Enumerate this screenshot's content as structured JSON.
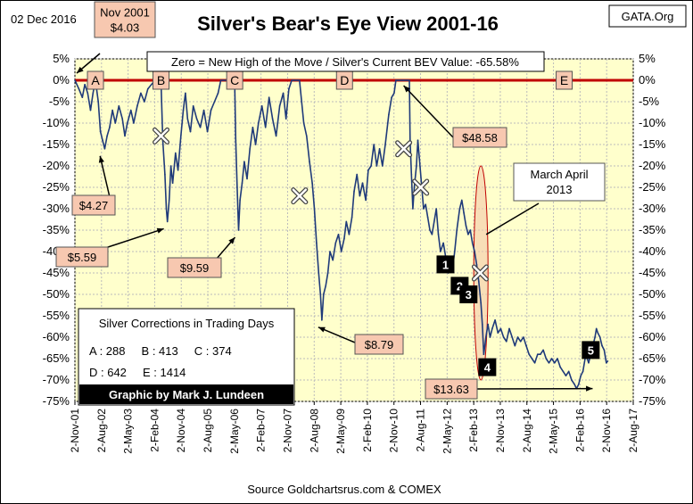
{
  "chart_data": {
    "type": "line",
    "title": "Silver's Bear's Eye View 2001-16",
    "date_label": "02 Dec 2016",
    "watermark": "GATA.Org",
    "subtitle": "Zero = New High of the Move / Silver's Current BEV Value: -65.58%",
    "source": "Source Goldchartsrus.com & COMEX",
    "xlabel": "",
    "ylabel": "",
    "ylim": [
      -75,
      5
    ],
    "y_ticks": [
      5,
      0,
      -5,
      -10,
      -15,
      -20,
      -25,
      -30,
      -35,
      -40,
      -45,
      -50,
      -55,
      -60,
      -65,
      -70,
      -75
    ],
    "y_tick_labels": [
      "5%",
      "0%",
      "-5%",
      "-10%",
      "-15%",
      "-20%",
      "-25%",
      "-30%",
      "-35%",
      "-40%",
      "-45%",
      "-50%",
      "-55%",
      "-60%",
      "-65%",
      "-70%",
      "-75%"
    ],
    "x_tick_labels": [
      "2-Nov-01",
      "2-Aug-02",
      "2-May-03",
      "2-Feb-04",
      "2-Nov-04",
      "2-Aug-05",
      "2-May-06",
      "2-Feb-07",
      "2-Nov-07",
      "2-Aug-08",
      "2-May-09",
      "2-Feb-10",
      "2-Nov-10",
      "2-Aug-11",
      "2-May-12",
      "2-Feb-13",
      "2-Nov-13",
      "2-Aug-14",
      "2-May-15",
      "2-Feb-16",
      "2-Nov-16",
      "2-Aug-17"
    ],
    "grid": true,
    "plot_background": "#ffffcc",
    "line_color": "#1f3a7a",
    "zero_line_color": "#c00000",
    "series": [
      {
        "values": [
          [
            2001.84,
            0
          ],
          [
            2001.95,
            -2
          ],
          [
            2002.05,
            -4
          ],
          [
            2002.12,
            -1
          ],
          [
            2002.2,
            -3
          ],
          [
            2002.28,
            -7
          ],
          [
            2002.35,
            -3
          ],
          [
            2002.42,
            0
          ],
          [
            2002.5,
            -5
          ],
          [
            2002.56,
            -12
          ],
          [
            2002.62,
            -14
          ],
          [
            2002.68,
            -16
          ],
          [
            2002.75,
            -13
          ],
          [
            2002.82,
            -11
          ],
          [
            2002.9,
            -7
          ],
          [
            2002.98,
            -10
          ],
          [
            2003.08,
            -6
          ],
          [
            2003.18,
            -9
          ],
          [
            2003.25,
            -13
          ],
          [
            2003.32,
            -10
          ],
          [
            2003.42,
            -7
          ],
          [
            2003.5,
            -10
          ],
          [
            2003.6,
            -6
          ],
          [
            2003.7,
            -3
          ],
          [
            2003.8,
            -5
          ],
          [
            2003.9,
            -2
          ],
          [
            2004.0,
            -1
          ],
          [
            2004.1,
            0
          ],
          [
            2004.2,
            0
          ],
          [
            2004.27,
            0
          ],
          [
            2004.32,
            -14
          ],
          [
            2004.38,
            -22
          ],
          [
            2004.42,
            -30
          ],
          [
            2004.45,
            -33
          ],
          [
            2004.5,
            -28
          ],
          [
            2004.55,
            -20
          ],
          [
            2004.6,
            -24
          ],
          [
            2004.68,
            -17
          ],
          [
            2004.75,
            -21
          ],
          [
            2004.83,
            -13
          ],
          [
            2004.9,
            -7
          ],
          [
            2004.96,
            -3
          ],
          [
            2005.02,
            -9
          ],
          [
            2005.1,
            -12
          ],
          [
            2005.18,
            -6
          ],
          [
            2005.28,
            -9
          ],
          [
            2005.38,
            -11
          ],
          [
            2005.48,
            -7
          ],
          [
            2005.58,
            -12
          ],
          [
            2005.68,
            -7
          ],
          [
            2005.78,
            -5
          ],
          [
            2005.88,
            -3
          ],
          [
            2005.96,
            0
          ],
          [
            2006.05,
            0
          ],
          [
            2006.15,
            0
          ],
          [
            2006.25,
            0
          ],
          [
            2006.3,
            0
          ],
          [
            2006.35,
            0
          ],
          [
            2006.38,
            -14
          ],
          [
            2006.42,
            -25
          ],
          [
            2006.46,
            -35
          ],
          [
            2006.5,
            -28
          ],
          [
            2006.56,
            -24
          ],
          [
            2006.62,
            -19
          ],
          [
            2006.7,
            -23
          ],
          [
            2006.78,
            -16
          ],
          [
            2006.86,
            -11
          ],
          [
            2006.94,
            -15
          ],
          [
            2007.02,
            -10
          ],
          [
            2007.12,
            -6
          ],
          [
            2007.22,
            -11
          ],
          [
            2007.32,
            -4
          ],
          [
            2007.42,
            -9
          ],
          [
            2007.52,
            -13
          ],
          [
            2007.62,
            -6
          ],
          [
            2007.72,
            -3
          ],
          [
            2007.8,
            -9
          ],
          [
            2007.88,
            -2
          ],
          [
            2007.96,
            0
          ],
          [
            2008.04,
            0
          ],
          [
            2008.12,
            0
          ],
          [
            2008.18,
            0
          ],
          [
            2008.24,
            -5
          ],
          [
            2008.3,
            -10
          ],
          [
            2008.38,
            -13
          ],
          [
            2008.46,
            -19
          ],
          [
            2008.54,
            -24
          ],
          [
            2008.6,
            -30
          ],
          [
            2008.66,
            -38
          ],
          [
            2008.72,
            -45
          ],
          [
            2008.77,
            -50
          ],
          [
            2008.81,
            -56
          ],
          [
            2008.86,
            -50
          ],
          [
            2008.92,
            -48
          ],
          [
            2008.98,
            -45
          ],
          [
            2009.04,
            -40
          ],
          [
            2009.12,
            -42
          ],
          [
            2009.2,
            -38
          ],
          [
            2009.28,
            -36
          ],
          [
            2009.36,
            -40
          ],
          [
            2009.44,
            -37
          ],
          [
            2009.5,
            -33
          ],
          [
            2009.58,
            -36
          ],
          [
            2009.66,
            -32
          ],
          [
            2009.72,
            -26
          ],
          [
            2009.8,
            -22
          ],
          [
            2009.88,
            -27
          ],
          [
            2009.96,
            -24
          ],
          [
            2010.05,
            -28
          ],
          [
            2010.12,
            -21
          ],
          [
            2010.2,
            -20
          ],
          [
            2010.28,
            -15
          ],
          [
            2010.36,
            -20
          ],
          [
            2010.44,
            -16
          ],
          [
            2010.52,
            -20
          ],
          [
            2010.6,
            -15
          ],
          [
            2010.7,
            -8
          ],
          [
            2010.78,
            -4
          ],
          [
            2010.85,
            -3
          ],
          [
            2010.9,
            0
          ],
          [
            2010.96,
            0
          ],
          [
            2011.02,
            0
          ],
          [
            2011.08,
            0
          ],
          [
            2011.12,
            0
          ],
          [
            2011.18,
            0
          ],
          [
            2011.22,
            0
          ],
          [
            2011.28,
            0
          ],
          [
            2011.3,
            -14
          ],
          [
            2011.34,
            -22
          ],
          [
            2011.38,
            -30
          ],
          [
            2011.42,
            -25
          ],
          [
            2011.48,
            -20
          ],
          [
            2011.52,
            -14
          ],
          [
            2011.56,
            -18
          ],
          [
            2011.62,
            -24
          ],
          [
            2011.68,
            -30
          ],
          [
            2011.74,
            -29
          ],
          [
            2011.8,
            -32
          ],
          [
            2011.86,
            -35
          ],
          [
            2011.92,
            -36
          ],
          [
            2011.98,
            -33
          ],
          [
            2012.04,
            -30
          ],
          [
            2012.1,
            -36
          ],
          [
            2012.16,
            -40
          ],
          [
            2012.24,
            -38
          ],
          [
            2012.32,
            -42
          ],
          [
            2012.38,
            -45
          ],
          [
            2012.44,
            -42
          ],
          [
            2012.5,
            -44
          ],
          [
            2012.56,
            -40
          ],
          [
            2012.62,
            -35
          ],
          [
            2012.7,
            -30
          ],
          [
            2012.76,
            -28
          ],
          [
            2012.82,
            -31
          ],
          [
            2012.88,
            -34
          ],
          [
            2012.94,
            -36
          ],
          [
            2013.0,
            -35
          ],
          [
            2013.06,
            -38
          ],
          [
            2013.12,
            -40
          ],
          [
            2013.18,
            -43
          ],
          [
            2013.24,
            -47
          ],
          [
            2013.3,
            -52
          ],
          [
            2013.34,
            -57
          ],
          [
            2013.38,
            -64
          ],
          [
            2013.44,
            -60
          ],
          [
            2013.5,
            -57
          ],
          [
            2013.56,
            -60
          ],
          [
            2013.62,
            -58
          ],
          [
            2013.7,
            -56
          ],
          [
            2013.78,
            -59
          ],
          [
            2013.86,
            -58
          ],
          [
            2013.94,
            -60
          ],
          [
            2014.02,
            -61
          ],
          [
            2014.1,
            -58
          ],
          [
            2014.18,
            -60
          ],
          [
            2014.26,
            -62
          ],
          [
            2014.34,
            -60
          ],
          [
            2014.42,
            -61
          ],
          [
            2014.5,
            -60
          ],
          [
            2014.58,
            -62
          ],
          [
            2014.66,
            -64
          ],
          [
            2014.74,
            -65
          ],
          [
            2014.82,
            -66
          ],
          [
            2014.9,
            -64
          ],
          [
            2014.98,
            -64
          ],
          [
            2015.06,
            -63
          ],
          [
            2015.14,
            -65
          ],
          [
            2015.22,
            -66
          ],
          [
            2015.3,
            -65
          ],
          [
            2015.38,
            -66
          ],
          [
            2015.46,
            -65
          ],
          [
            2015.54,
            -67
          ],
          [
            2015.62,
            -68
          ],
          [
            2015.7,
            -69
          ],
          [
            2015.78,
            -68
          ],
          [
            2015.86,
            -70
          ],
          [
            2015.94,
            -71
          ],
          [
            2016.0,
            -72
          ],
          [
            2016.06,
            -71
          ],
          [
            2016.12,
            -69
          ],
          [
            2016.18,
            -68
          ],
          [
            2016.26,
            -64
          ],
          [
            2016.34,
            -66
          ],
          [
            2016.4,
            -64
          ],
          [
            2016.46,
            -62
          ],
          [
            2016.52,
            -60
          ],
          [
            2016.56,
            -58
          ],
          [
            2016.6,
            -59
          ],
          [
            2016.66,
            -60
          ],
          [
            2016.72,
            -62
          ],
          [
            2016.78,
            -63
          ],
          [
            2016.84,
            -66
          ],
          [
            2016.88,
            -65.58
          ]
        ]
      }
    ],
    "period_labels": [
      {
        "text": "A",
        "x": 2002.42,
        "y": 0
      },
      {
        "text": "B",
        "x": 2004.27,
        "y": 0
      },
      {
        "text": "C",
        "x": 2006.35,
        "y": 0
      },
      {
        "text": "D",
        "x": 2009.45,
        "y": 0
      },
      {
        "text": "E",
        "x": 2015.65,
        "y": 0
      }
    ],
    "price_callouts": [
      {
        "text": "Nov 2001\n$4.03",
        "x": 2001.84,
        "y": 0
      },
      {
        "text": "$4.27",
        "x": 2002.65,
        "y": -16
      },
      {
        "text": "$5.59",
        "x": 2004.45,
        "y": -33
      },
      {
        "text": "$9.59",
        "x": 2006.46,
        "y": -35
      },
      {
        "text": "$8.79",
        "x": 2008.81,
        "y": -56
      },
      {
        "text": "$48.58",
        "x": 2011.22,
        "y": 0
      },
      {
        "text": "$13.63",
        "x": 2016.0,
        "y": -72
      }
    ],
    "cross_markers": [
      {
        "x": 2004.27,
        "y": -13
      },
      {
        "x": 2008.18,
        "y": -27
      },
      {
        "x": 2011.12,
        "y": -16
      },
      {
        "x": 2011.6,
        "y": -25
      },
      {
        "x": 2013.28,
        "y": -45
      }
    ],
    "numbered_markers": [
      "1",
      "2",
      "3",
      "4",
      "5"
    ],
    "march_april_note": "March April\n2013",
    "corrections_table": {
      "title": "Silver Corrections in Trading Days",
      "rows": [
        "A : 288     B : 413     C : 374",
        "D : 642     E : 1414"
      ]
    },
    "credit": "Graphic by Mark J. Lundeen"
  }
}
